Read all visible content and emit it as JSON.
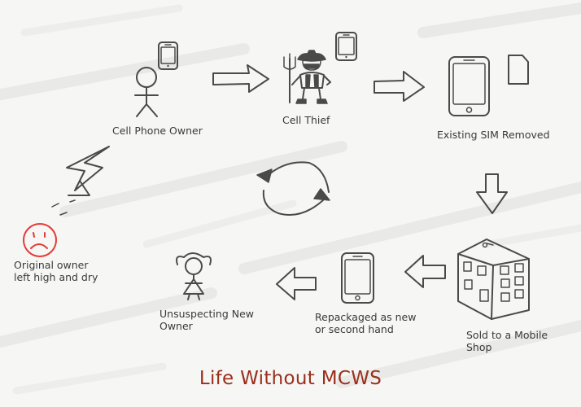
{
  "title": "Life Without MCWS",
  "colors": {
    "title": "#9a2f1a",
    "ink": "#4a4a4a",
    "sad_face": "#e33b36",
    "background": "#f6f6f5"
  },
  "nodes": [
    {
      "id": "owner",
      "label": "Cell Phone Owner",
      "icons": [
        "stick-figure-icon",
        "cell-phone-icon"
      ]
    },
    {
      "id": "thief",
      "label": "Cell Thief",
      "icons": [
        "thief-cowboy-icon",
        "cell-phone-icon"
      ]
    },
    {
      "id": "sim",
      "label": "Existing SIM Removed",
      "icons": [
        "smartphone-icon",
        "sim-card-icon"
      ]
    },
    {
      "id": "shop",
      "label_lines": [
        "Sold to a Mobile",
        "Shop"
      ],
      "icons": [
        "building-icon"
      ]
    },
    {
      "id": "repack",
      "label_lines": [
        "Repackaged as new",
        "or second hand"
      ],
      "icons": [
        "smartphone-icon"
      ]
    },
    {
      "id": "new_owner",
      "label_lines": [
        "Unsuspecting New",
        "Owner"
      ],
      "icons": [
        "girl-figure-icon"
      ]
    },
    {
      "id": "original",
      "label_lines": [
        "Original owner",
        "left high and dry"
      ],
      "icons": [
        "sad-face-icon"
      ]
    }
  ],
  "connectors": [
    "arrow-right",
    "arrow-right",
    "arrow-down",
    "arrow-left",
    "arrow-left",
    "lightning-bolt",
    "cycle-arrows"
  ]
}
